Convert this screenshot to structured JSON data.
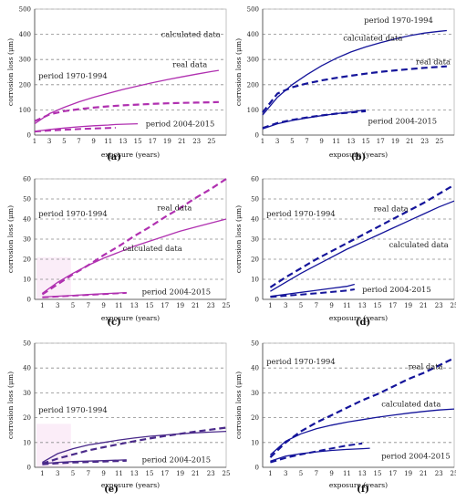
{
  "figure_title": "",
  "chart_data": [
    {
      "panel": "(a)",
      "type": "line",
      "ylabel": "corrosion loss (μm)",
      "xlabel": "exposure (years)",
      "xlim": [
        1,
        27
      ],
      "ylim": [
        0,
        500
      ],
      "yticks": [
        0,
        100,
        200,
        300,
        400,
        500
      ],
      "xticks": [
        1,
        3,
        5,
        7,
        9,
        11,
        13,
        15,
        17,
        19,
        21,
        23,
        25
      ],
      "color": "#b030b0",
      "grid": true,
      "annotations": [
        "calculated data",
        "real data",
        "period 1970-1994",
        "period 2004-2015"
      ],
      "series": [
        {
          "name": "calculated data",
          "dash": "solid",
          "width": 1.3,
          "x": [
            1,
            3,
            5,
            7,
            9,
            11,
            13,
            15,
            17,
            19,
            21,
            23,
            25,
            26
          ],
          "y": [
            45,
            85,
            110,
            132,
            150,
            166,
            181,
            195,
            208,
            220,
            231,
            242,
            252,
            257
          ]
        },
        {
          "name": "real data",
          "dash": "dashed",
          "width": 2.2,
          "x": [
            1,
            3,
            5,
            7,
            9,
            11,
            13,
            15,
            17,
            19,
            21,
            23,
            25,
            26
          ],
          "y": [
            55,
            82,
            95,
            103,
            109,
            114,
            118,
            121,
            124,
            126,
            128,
            129,
            130,
            131
          ]
        },
        {
          "x": [
            1,
            3,
            5,
            7,
            9,
            11,
            12,
            15
          ],
          "y": [
            15,
            22,
            28,
            33,
            37,
            40,
            42,
            45
          ],
          "dash": "solid",
          "width": 1.3
        },
        {
          "x": [
            1,
            3,
            5,
            7,
            9,
            11,
            12
          ],
          "y": [
            14,
            18,
            21,
            24,
            26,
            28,
            29
          ],
          "dash": "dashed",
          "width": 2
        }
      ]
    },
    {
      "panel": "(b)",
      "type": "line",
      "ylabel": "corrosion loss (μm)",
      "xlabel": "exposure (years)",
      "xlim": [
        1,
        27
      ],
      "ylim": [
        0,
        500
      ],
      "yticks": [
        0,
        100,
        200,
        300,
        400,
        500
      ],
      "xticks": [
        1,
        3,
        5,
        7,
        9,
        11,
        13,
        15,
        17,
        19,
        21,
        23,
        25
      ],
      "color": "#14149a",
      "grid": true,
      "annotations": [
        "period 1970-1994",
        "calculated data",
        "real data",
        "period 2004-2015"
      ],
      "series": [
        {
          "name": "calculated data",
          "dash": "solid",
          "width": 1.3,
          "x": [
            1,
            3,
            5,
            7,
            9,
            11,
            13,
            15,
            17,
            19,
            21,
            23,
            25,
            26
          ],
          "y": [
            80,
            150,
            200,
            240,
            275,
            305,
            330,
            350,
            367,
            382,
            395,
            405,
            412,
            415
          ]
        },
        {
          "name": "real data",
          "dash": "dashed",
          "width": 2.2,
          "x": [
            1,
            3,
            5,
            7,
            9,
            11,
            13,
            15,
            17,
            19,
            21,
            23,
            25,
            26
          ],
          "y": [
            90,
            165,
            190,
            205,
            217,
            227,
            236,
            244,
            251,
            257,
            262,
            267,
            271,
            273
          ]
        },
        {
          "x": [
            1,
            3,
            5,
            7,
            9,
            11,
            13,
            15
          ],
          "y": [
            25,
            45,
            58,
            68,
            77,
            85,
            92,
            100
          ],
          "dash": "solid",
          "width": 1.3
        },
        {
          "x": [
            1,
            3,
            5,
            7,
            9,
            11,
            13,
            15
          ],
          "y": [
            28,
            48,
            60,
            70,
            78,
            85,
            90,
            95
          ],
          "dash": "dashed",
          "width": 2.2
        }
      ]
    },
    {
      "panel": "(c)",
      "type": "line",
      "ylabel": "corrosion loss (μm)",
      "xlabel": "exposure (years)",
      "xlim": [
        0,
        25
      ],
      "ylim": [
        0,
        60
      ],
      "yticks": [
        0,
        10,
        20,
        30,
        40,
        50,
        60
      ],
      "xticks": [
        1,
        3,
        5,
        7,
        9,
        11,
        13,
        15,
        17,
        19,
        21,
        23,
        25
      ],
      "color": "#b030b0",
      "grid": true,
      "annotations": [
        "real data",
        "period 1970-1994",
        "calculated data",
        "period 2004-2015"
      ],
      "series": [
        {
          "name": "calculated data",
          "dash": "solid",
          "width": 1.3,
          "x": [
            1,
            3,
            5,
            7,
            9,
            11,
            13,
            15,
            17,
            19,
            21,
            23,
            25
          ],
          "y": [
            3,
            8.5,
            13,
            17,
            20.5,
            23.5,
            26.5,
            29,
            31.5,
            34,
            36,
            38,
            40
          ]
        },
        {
          "name": "real data",
          "dash": "dashed",
          "width": 2.2,
          "x": [
            1,
            3,
            5,
            7,
            9,
            11,
            13,
            15,
            17,
            19,
            21,
            23,
            25
          ],
          "y": [
            2.5,
            7.5,
            12.5,
            17,
            22,
            26.5,
            31.5,
            36,
            41,
            45.5,
            50.5,
            55,
            60
          ]
        },
        {
          "x": [
            1,
            3,
            5,
            7,
            9,
            11,
            12
          ],
          "y": [
            1.2,
            1.6,
            2,
            2.4,
            2.8,
            3.2,
            3.4
          ],
          "dash": "solid",
          "width": 1.3
        },
        {
          "x": [
            1,
            3,
            5,
            7,
            9,
            11,
            12
          ],
          "y": [
            1,
            1.4,
            1.8,
            2.2,
            2.6,
            3,
            3.2
          ],
          "dash": "dashed",
          "width": 1.8
        }
      ]
    },
    {
      "panel": "(d)",
      "type": "line",
      "ylabel": "corrosion loss (μm)",
      "xlabel": "exposure (years)",
      "xlim": [
        0,
        25
      ],
      "ylim": [
        0,
        60
      ],
      "yticks": [
        0,
        10,
        20,
        30,
        40,
        50,
        60
      ],
      "xticks": [
        1,
        3,
        5,
        7,
        9,
        11,
        13,
        15,
        17,
        19,
        21,
        23,
        25
      ],
      "color": "#14149a",
      "grid": true,
      "annotations": [
        "period 1970-1994",
        "real data",
        "calculated data",
        "period 2004-2015"
      ],
      "series": [
        {
          "name": "calculated data",
          "dash": "solid",
          "width": 1.3,
          "x": [
            1,
            3,
            5,
            7,
            9,
            11,
            13,
            15,
            17,
            19,
            21,
            23,
            25
          ],
          "y": [
            4,
            8.5,
            13,
            17,
            21,
            25,
            28.5,
            32,
            35.5,
            39,
            42.5,
            46,
            49
          ]
        },
        {
          "name": "real data",
          "dash": "dashed",
          "width": 2.2,
          "x": [
            1,
            3,
            5,
            7,
            9,
            11,
            13,
            15,
            17,
            19,
            21,
            23,
            25
          ],
          "y": [
            6,
            11,
            15.5,
            20,
            24,
            28,
            32,
            36,
            40,
            44,
            48,
            52.5,
            57
          ]
        },
        {
          "x": [
            1,
            3,
            5,
            7,
            9,
            11,
            12
          ],
          "y": [
            1.5,
            2.5,
            3.5,
            4.5,
            5.5,
            6.5,
            7.5
          ],
          "dash": "solid",
          "width": 1.3
        },
        {
          "x": [
            1,
            3,
            5,
            7,
            9,
            11,
            12
          ],
          "y": [
            1.2,
            1.8,
            2.4,
            3,
            3.7,
            4.4,
            5
          ],
          "dash": "dashed",
          "width": 2
        }
      ]
    },
    {
      "panel": "(e)",
      "type": "line",
      "ylabel": "corrosion loss (μm)",
      "xlabel": "exposure (years)",
      "xlim": [
        0,
        25
      ],
      "ylim": [
        0,
        50
      ],
      "yticks": [
        0,
        10,
        20,
        30,
        40,
        50
      ],
      "xticks": [
        1,
        3,
        5,
        7,
        9,
        11,
        13,
        15,
        17,
        19,
        21,
        23,
        25
      ],
      "color": "#4a2a8a",
      "grid": true,
      "annotations": [
        "period 1970-1994",
        "period 2004-2015"
      ],
      "series": [
        {
          "dash": "solid",
          "width": 1.3,
          "x": [
            1,
            3,
            5,
            7,
            9,
            11,
            13,
            15,
            17,
            19,
            21,
            23,
            25
          ],
          "y": [
            2,
            5.5,
            7.5,
            9,
            10,
            11,
            11.8,
            12.5,
            13,
            13.5,
            13.9,
            14.2,
            14.5
          ]
        },
        {
          "dash": "dashed",
          "width": 2.2,
          "x": [
            1,
            3,
            5,
            7,
            9,
            11,
            13,
            15,
            17,
            19,
            21,
            23,
            25
          ],
          "y": [
            1.5,
            3.5,
            5.2,
            6.8,
            8.1,
            9.3,
            10.5,
            11.6,
            12.6,
            13.5,
            14.4,
            15.2,
            16
          ]
        },
        {
          "dash": "solid",
          "width": 1.3,
          "x": [
            1,
            3,
            5,
            7,
            9,
            11,
            12
          ],
          "y": [
            1.5,
            2,
            2.3,
            2.5,
            2.7,
            2.9,
            3
          ]
        },
        {
          "dash": "dashed",
          "width": 2,
          "x": [
            1,
            3,
            5,
            7,
            9,
            11,
            12
          ],
          "y": [
            1.2,
            1.6,
            1.9,
            2.1,
            2.3,
            2.5,
            2.6
          ]
        }
      ]
    },
    {
      "panel": "(f)",
      "type": "line",
      "ylabel": "corrosion loss (μm)",
      "xlabel": "exposure (years)",
      "xlim": [
        0,
        25
      ],
      "ylim": [
        0,
        50
      ],
      "yticks": [
        0,
        10,
        20,
        30,
        40,
        50
      ],
      "xticks": [
        1,
        3,
        5,
        7,
        9,
        11,
        13,
        15,
        17,
        19,
        21,
        23,
        25
      ],
      "color": "#14149a",
      "grid": true,
      "annotations": [
        "period 1970-1994",
        "real data",
        "calculated data",
        "period 2004-2015"
      ],
      "series": [
        {
          "name": "calculated data",
          "dash": "solid",
          "width": 1.3,
          "x": [
            1,
            3,
            5,
            7,
            9,
            11,
            13,
            15,
            17,
            19,
            21,
            23,
            25
          ],
          "y": [
            5,
            10.5,
            13.5,
            15.5,
            17,
            18.2,
            19.2,
            20.2,
            21,
            21.8,
            22.5,
            23.1,
            23.5
          ]
        },
        {
          "name": "real data",
          "dash": "dashed",
          "width": 2.2,
          "x": [
            1,
            3,
            5,
            7,
            9,
            11,
            13,
            15,
            17,
            19,
            21,
            23,
            25
          ],
          "y": [
            4,
            10,
            14.5,
            18,
            21,
            24,
            27,
            29.5,
            32.5,
            35.5,
            38,
            41,
            44
          ]
        },
        {
          "x": [
            1,
            3,
            5,
            7,
            9,
            11,
            13,
            14
          ],
          "y": [
            2.5,
            4.5,
            5.5,
            6.2,
            6.8,
            7.2,
            7.5,
            7.7
          ],
          "dash": "solid",
          "width": 1.3
        },
        {
          "x": [
            1,
            3,
            5,
            7,
            9,
            11,
            13
          ],
          "y": [
            2,
            3.8,
            5.2,
            6.4,
            7.6,
            8.8,
            9.6
          ],
          "dash": "dashed",
          "width": 2
        }
      ]
    }
  ]
}
